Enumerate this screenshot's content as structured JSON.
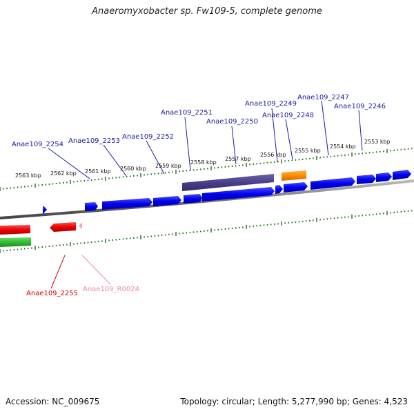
{
  "title": "Anaeromyxobacter sp. Fw109-5, complete genome",
  "footer": {
    "accession": "Accession: NC_009675",
    "topology": "Topology: circular; Length: 5,277,990 bp; Genes: 4,523"
  },
  "ticks_outer": [
    "2563 kbp",
    "2562 kbp",
    "2561 kbp",
    "2560 kbp",
    "2559 kbp",
    "2558 kbp",
    "2557 kbp",
    "2556 kbp",
    "2555 kbp",
    "2554 kbp",
    "2553 kbp"
  ],
  "genes_top": [
    "Anae109_2254",
    "Anae109_2253",
    "Anae109_2252",
    "Anae109_2251",
    "Anae109_2250",
    "Anae109_2249",
    "Anae109_2248",
    "Anae109_2247",
    "Anae109_2246"
  ],
  "genes_bottom": [
    "Anae109_2255",
    "Anae109_R0024"
  ],
  "colors": {
    "forward_cds": "#0000ee",
    "operon": "#4a3f8a",
    "highlight": "#ff8c00",
    "reverse_cds": "#ee0000",
    "rna": "#ff9fc0",
    "green_track": "#33bb33",
    "tick": "#1a6b1a",
    "label_forward": "#1a1aa0",
    "label_reverse": "#cc0000",
    "label_rna": "#ee88aa"
  }
}
